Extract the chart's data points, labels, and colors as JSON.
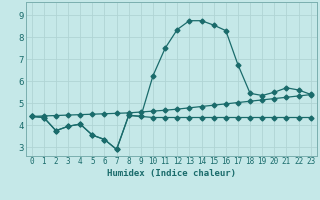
{
  "title": "",
  "xlabel": "Humidex (Indice chaleur)",
  "background_color": "#c5e8e8",
  "grid_color": "#b0d4d4",
  "line_color": "#1a6b6b",
  "xlim": [
    -0.5,
    23.5
  ],
  "ylim": [
    2.6,
    9.6
  ],
  "xticks": [
    0,
    1,
    2,
    3,
    4,
    5,
    6,
    7,
    8,
    9,
    10,
    11,
    12,
    13,
    14,
    15,
    16,
    17,
    18,
    19,
    20,
    21,
    22,
    23
  ],
  "yticks": [
    3,
    4,
    5,
    6,
    7,
    8,
    9
  ],
  "curve_main_x": [
    0,
    1,
    2,
    3,
    4,
    5,
    6,
    7,
    8,
    9,
    10,
    11,
    12,
    13,
    14,
    15,
    16,
    17,
    18,
    19,
    20,
    21,
    22,
    23
  ],
  "curve_main_y": [
    4.4,
    4.35,
    3.75,
    3.95,
    4.05,
    3.55,
    3.35,
    2.9,
    4.45,
    4.4,
    6.25,
    7.5,
    8.35,
    8.75,
    8.75,
    8.55,
    8.3,
    6.75,
    5.45,
    5.35,
    5.5,
    5.7,
    5.6,
    5.4
  ],
  "curve_linear_x": [
    0,
    1,
    2,
    3,
    4,
    5,
    6,
    7,
    8,
    9,
    10,
    11,
    12,
    13,
    14,
    15,
    16,
    17,
    18,
    19,
    20,
    21,
    22,
    23
  ],
  "curve_linear_y": [
    4.4,
    4.42,
    4.44,
    4.46,
    4.48,
    4.5,
    4.52,
    4.54,
    4.56,
    4.6,
    4.64,
    4.68,
    4.73,
    4.79,
    4.85,
    4.91,
    4.97,
    5.03,
    5.09,
    5.15,
    5.21,
    5.27,
    5.33,
    5.39
  ],
  "curve_zigzag_x": [
    0,
    1,
    2,
    3,
    4,
    5,
    6,
    7,
    8,
    9,
    10,
    11,
    12,
    13,
    14,
    15,
    16,
    17,
    18,
    19,
    20,
    21,
    22,
    23
  ],
  "curve_zigzag_y": [
    4.4,
    4.35,
    3.75,
    3.95,
    4.05,
    3.55,
    3.35,
    2.9,
    4.45,
    4.4,
    4.35,
    4.35,
    4.35,
    4.35,
    4.35,
    4.35,
    4.35,
    4.35,
    4.35,
    4.35,
    4.35,
    4.35,
    4.35,
    4.35
  ],
  "marker_size": 2.5,
  "line_width": 0.9,
  "tick_fontsize": 5.5,
  "xlabel_fontsize": 6.5
}
